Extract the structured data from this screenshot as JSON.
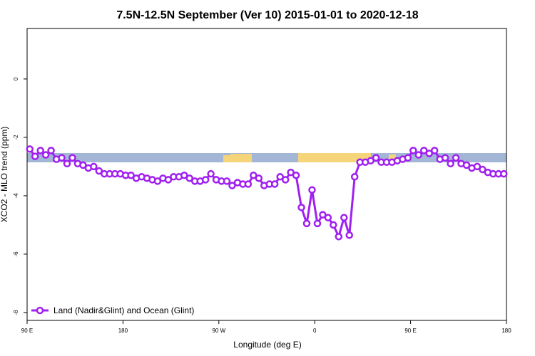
{
  "chart_data": {
    "type": "line",
    "title": "7.5N-12.5N September (Ver 10)   2015-01-01 to 2020-12-18",
    "x_label": "Longitude (deg E)",
    "y_label": "XCO2 - MLO trend (ppm)",
    "x": [
      92.5,
      97.5,
      102.5,
      107.5,
      112.5,
      117.5,
      122.5,
      127.5,
      132.5,
      137.5,
      142.5,
      147.5,
      152.5,
      157.5,
      162.5,
      167.5,
      172.5,
      177.5,
      182.5,
      187.5,
      192.5,
      197.5,
      202.5,
      207.5,
      212.5,
      217.5,
      222.5,
      227.5,
      232.5,
      237.5,
      242.5,
      247.5,
      252.5,
      257.5,
      262.5,
      267.5,
      272.5,
      277.5,
      282.5,
      287.5,
      292.5,
      297.5,
      302.5,
      307.5,
      312.5,
      317.5,
      322.5,
      327.5,
      332.5,
      337.5,
      342.5,
      347.5,
      352.5,
      357.5,
      362.5,
      367.5,
      372.5,
      377.5,
      382.5,
      387.5,
      392.5,
      397.5,
      402.5,
      407.5,
      412.5,
      417.5,
      422.5,
      427.5,
      432.5,
      437.5,
      442.5,
      447.5,
      452.5,
      457.5,
      462.5,
      467.5,
      472.5,
      477.5,
      482.5,
      487.5,
      492.5,
      497.5,
      502.5,
      507.5,
      512.5,
      517.5,
      522.5,
      527.5,
      532.5,
      537.5
    ],
    "series": [
      {
        "name": "Land (Nadir&Glint) and Ocean (Glint)",
        "color": "#a020f0",
        "values": [
          -2.4,
          -2.65,
          -2.45,
          -2.6,
          -2.45,
          -2.75,
          -2.7,
          -2.9,
          -2.7,
          -2.9,
          -2.95,
          -3.05,
          -3.0,
          -3.15,
          -3.25,
          -3.25,
          -3.25,
          -3.25,
          -3.3,
          -3.3,
          -3.4,
          -3.35,
          -3.4,
          -3.45,
          -3.5,
          -3.4,
          -3.45,
          -3.35,
          -3.35,
          -3.3,
          -3.4,
          -3.5,
          -3.5,
          -3.45,
          -3.25,
          -3.45,
          -3.5,
          -3.5,
          -3.65,
          -3.55,
          -3.6,
          -3.6,
          -3.3,
          -3.4,
          -3.65,
          -3.6,
          -3.6,
          -3.35,
          -3.45,
          -3.2,
          -3.3,
          -4.4,
          -4.95,
          -3.8,
          -4.95,
          -4.65,
          -4.75,
          -5.0,
          -5.4,
          -4.75,
          -5.35,
          -3.35,
          -2.85,
          -2.85,
          -2.8,
          -2.7,
          -2.85,
          -2.85,
          -2.85,
          -2.8,
          -2.75,
          -2.7,
          -2.45,
          -2.6,
          -2.45,
          -2.55,
          -2.45,
          -2.75,
          -2.7,
          -2.9,
          -2.7,
          -2.9,
          -2.95,
          -3.05,
          -3.0,
          -3.1,
          -3.2,
          -3.25,
          -3.25,
          -3.25
        ]
      }
    ],
    "xlim": [
      90,
      540
    ],
    "xticks": [
      {
        "value": 90,
        "label": "90 E"
      },
      {
        "value": 180,
        "label": "180"
      },
      {
        "value": 270,
        "label": "90 W"
      },
      {
        "value": 360,
        "label": "0"
      },
      {
        "value": 450,
        "label": "90 E"
      },
      {
        "value": 540,
        "label": "180"
      }
    ],
    "ylim": [
      -8.27,
      1.73
    ],
    "yticks": [
      0,
      -2,
      -4,
      -6,
      -8
    ],
    "legend": "bottom-left"
  }
}
